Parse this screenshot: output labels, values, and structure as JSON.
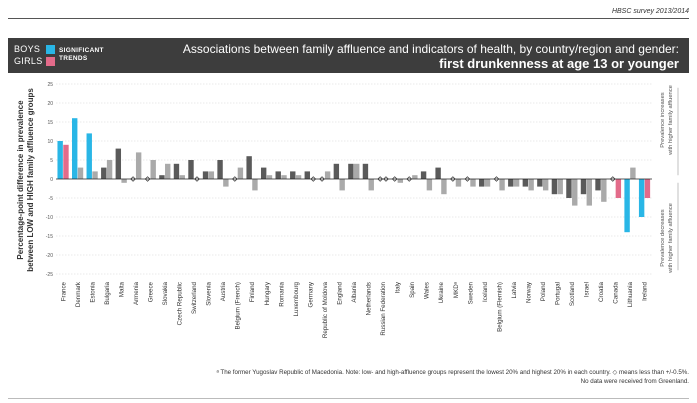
{
  "header": {
    "survey": "HBSC survey 2013/2014",
    "title_line1": "Associations between family affluence and indicators of health, by country/region and gender:",
    "title_line2": "first drunkenness at age 13 or younger",
    "legend_boys": "BOYS",
    "legend_girls": "GIRLS",
    "legend_sig_line1": "SIGNIFICANT",
    "legend_sig_line2": "TRENDS"
  },
  "colors": {
    "boys_significant": "#29b6e6",
    "girls_significant": "#e36b8a",
    "boys_nonsig": "#5a5a5a",
    "girls_nonsig": "#aaaaaa",
    "header_bg": "#3d3d3d",
    "zero_line": "#222222"
  },
  "chart_data": {
    "type": "bar",
    "ylabel": "Percentage-point difference in prevalence between LOW and HIGH family affluence groups",
    "ylim": [
      -25,
      25
    ],
    "yticks": [
      "25",
      "20",
      "15",
      "10",
      "5",
      "0",
      "-5",
      "-10",
      "-15",
      "-20",
      "-25"
    ],
    "grid": true,
    "side_label_top": "Prevalence increases with higher family affluence",
    "side_label_bottom": "Prevalence decreases with higher family affluence",
    "categories": [
      "France",
      "Denmark",
      "Estonia",
      "Bulgaria",
      "Malta",
      "Armenia",
      "Greece",
      "Slovakia",
      "Czech Republic",
      "Switzerland",
      "Slovenia",
      "Austria",
      "Belgium (French)",
      "Finland",
      "Hungary",
      "Romania",
      "Luxembourg",
      "Germany",
      "Republic of Moldova",
      "England",
      "Albania",
      "Netherlands",
      "Russian Federation",
      "Italy",
      "Spain",
      "Wales",
      "Ukraine",
      "MKDᵃ",
      "Sweden",
      "Iceland",
      "Belgium (Flemish)",
      "Latvia",
      "Norway",
      "Poland",
      "Portugal",
      "Scotland",
      "Israel",
      "Croatia",
      "Canada",
      "Lithuania",
      "Ireland"
    ],
    "series": [
      {
        "name": "BOYS",
        "values": [
          10,
          16,
          12,
          3,
          8,
          0,
          0,
          1,
          4,
          5,
          2,
          5,
          0,
          6,
          3,
          2,
          2,
          2,
          0,
          4,
          4,
          4,
          0,
          0,
          0,
          2,
          3,
          0,
          0,
          -2,
          0,
          -2,
          -2,
          -2,
          -4,
          -5,
          -4,
          -3,
          0,
          -14,
          -10
        ],
        "significant": [
          true,
          true,
          true,
          false,
          false,
          false,
          false,
          false,
          false,
          false,
          false,
          false,
          false,
          false,
          false,
          false,
          false,
          false,
          false,
          false,
          false,
          false,
          false,
          false,
          false,
          false,
          false,
          false,
          false,
          false,
          false,
          false,
          false,
          false,
          false,
          false,
          false,
          false,
          false,
          true,
          true
        ]
      },
      {
        "name": "GIRLS",
        "values": [
          9,
          3,
          2,
          5,
          -1,
          7,
          5,
          4,
          1,
          0,
          2,
          -2,
          3,
          -3,
          1,
          1,
          1,
          0,
          2,
          -3,
          4,
          -3,
          0,
          -1,
          1,
          -3,
          -4,
          -2,
          -2,
          -2,
          -3,
          -2,
          -3,
          -3,
          -4,
          -7,
          -7,
          -6,
          -5,
          3,
          -5
        ],
        "significant": [
          true,
          false,
          false,
          false,
          false,
          false,
          false,
          false,
          false,
          false,
          false,
          false,
          false,
          false,
          false,
          false,
          false,
          false,
          false,
          false,
          false,
          false,
          false,
          false,
          false,
          false,
          false,
          false,
          false,
          false,
          false,
          false,
          false,
          false,
          false,
          false,
          false,
          false,
          true,
          false,
          true
        ]
      }
    ]
  },
  "footnote": {
    "line1": "ᵃ The former Yugoslav Republic of Macedonia. Note: low- and high-affluence groups represent the lowest 20% and highest 20% in each country. ◇ means less than +/-0.5%.",
    "line2": "No data were received from Greenland."
  }
}
